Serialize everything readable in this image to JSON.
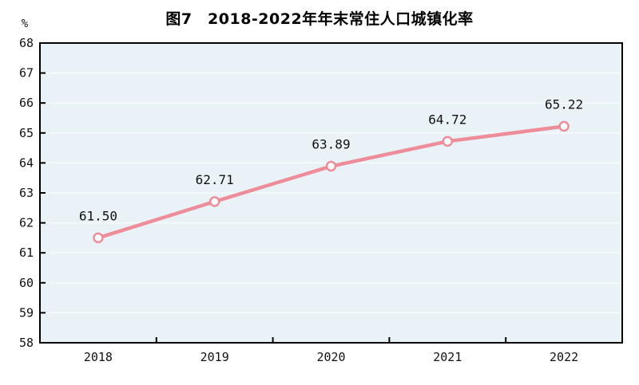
{
  "title": "图7　2018-2022年年末常住人口城镇化率",
  "unit_label": "%",
  "chart_data": {
    "type": "line",
    "title": "图7　2018-2022年年末常住人口城镇化率",
    "categories": [
      "2018",
      "2019",
      "2020",
      "2021",
      "2022"
    ],
    "series": [
      {
        "name": "年末常住人口城镇化率",
        "values": [
          61.5,
          62.71,
          63.89,
          64.72,
          65.22
        ]
      }
    ],
    "point_labels": [
      "61.50",
      "62.71",
      "63.89",
      "64.72",
      "65.22"
    ],
    "xlabel": "",
    "ylabel": "%",
    "ylim": [
      58,
      68
    ],
    "ytick_step": 1,
    "grid": true,
    "legend_position": "none",
    "colors": {
      "line": "#ee8d9a",
      "marker_fill": "#ffffff",
      "plot_bg": "#e9f3f7",
      "grid_line": "#ffffff",
      "axis": "#000000",
      "text": "#111111"
    }
  }
}
